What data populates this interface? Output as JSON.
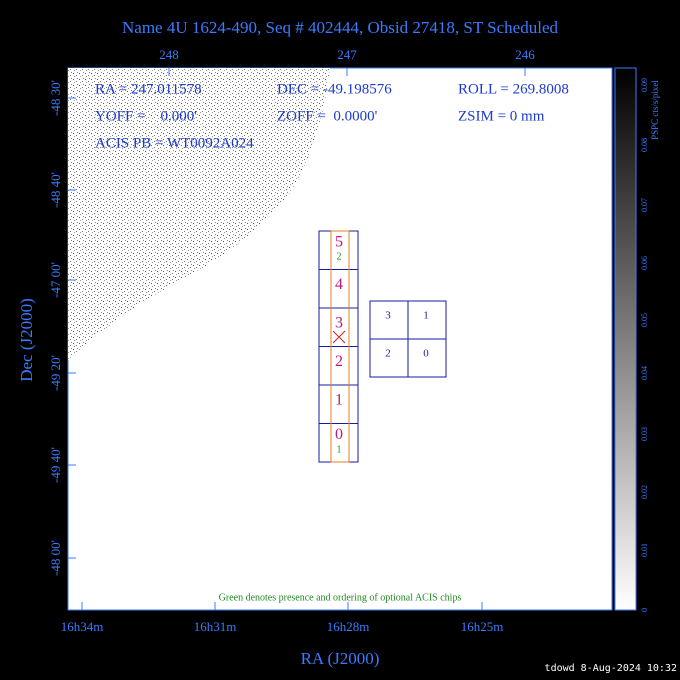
{
  "title": "Name 4U 1624-490, Seq # 402444, Obsid 27418, ST Scheduled",
  "top_axis": [
    "248",
    "247",
    "246"
  ],
  "left_axis": [
    "-48 30'",
    "-48 40'",
    "-47 00'",
    "-49 20'",
    "-49 40'",
    "-48 00'"
  ],
  "bottom_axis": [
    "16h34m",
    "16h31m",
    "16h28m",
    "16h25m"
  ],
  "x_label": "RA (J2000)",
  "y_label": "Dec (J2000)",
  "info": [
    "RA = 247.011578",
    "DEC = -49.198576",
    "ROLL = 269.8008",
    "YOFF =    0.000'",
    "ZOFF =  0.0000'",
    "ZSIM = 0 mm",
    "ACIS PB = WT0092A024"
  ],
  "acis_s": [
    "5",
    "4",
    "3",
    "2",
    "1",
    "0"
  ],
  "optional_marks": [
    "2",
    "1"
  ],
  "acis_i": [
    "3",
    "1",
    "2",
    "0"
  ],
  "note": "Green denotes presence and ordering of optional ACIS chips",
  "colorbar": {
    "label": "PSPC cts/s/pixel",
    "ticks": [
      "0.09",
      "0.08",
      "0.07",
      "0.06",
      "0.05",
      "0.04",
      "0.03",
      "0.02",
      "0.01",
      "0"
    ]
  },
  "footer": "tdowd  8-Aug-2024 10:32"
}
